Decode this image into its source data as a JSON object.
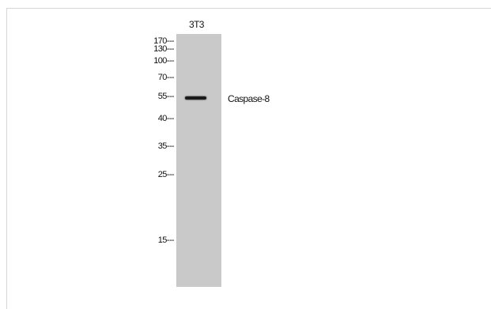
{
  "lane_labels": [
    "3T3"
  ],
  "markers": [
    "170---",
    "130---",
    "100---",
    "70---",
    "55---",
    "40---",
    "35---",
    "25---",
    "15---"
  ],
  "band_label": "Caspase-8"
}
